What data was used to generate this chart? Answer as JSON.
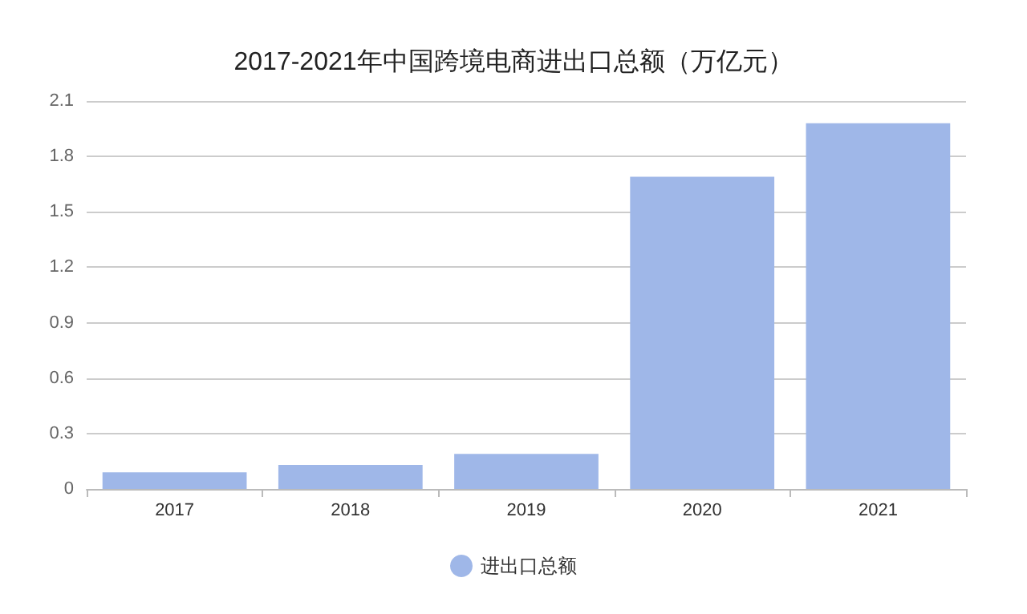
{
  "chart_data": {
    "type": "bar",
    "title": "2017-2021年中国跨境电商进出口总额（万亿元）",
    "categories": [
      "2017",
      "2018",
      "2019",
      "2020",
      "2021"
    ],
    "series": [
      {
        "name": "进出口总额",
        "color": "#9fb7e8",
        "values": [
          0.09,
          0.13,
          0.19,
          1.69,
          1.98
        ]
      }
    ],
    "ylim": [
      0,
      2.1
    ],
    "yticks": [
      0,
      0.3,
      0.6,
      0.9,
      1.2,
      1.5,
      1.8,
      2.1
    ],
    "grid": "y",
    "legend": "bottom"
  }
}
